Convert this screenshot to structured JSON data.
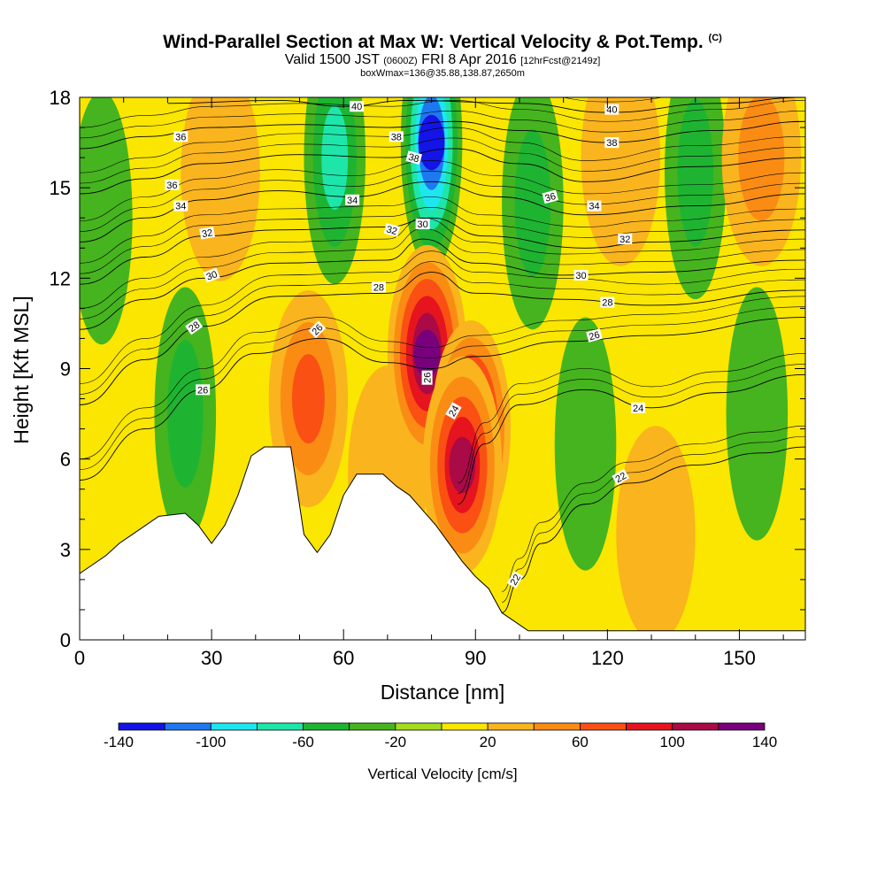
{
  "header": {
    "title_main": "Wind-Parallel Section at Max W: Vertical Velocity & Pot.Temp.",
    "title_mark": "(C)",
    "subtitle_a": "Valid 1500 JST",
    "subtitle_b": "(0600Z)",
    "subtitle_c": "FRI 8 Apr 2016",
    "subtitle_d": "[12hrFcst@2149z]",
    "subtitle2": "boxWmax=136@35.88,138.87,2650m"
  },
  "chart_data": {
    "type": "heatmap",
    "xlabel": "Distance [nm]",
    "ylabel": "Height [Kft MSL]",
    "xlim": [
      0,
      165
    ],
    "ylim": [
      0,
      18
    ],
    "x_ticks": [
      "0",
      "30",
      "60",
      "90",
      "120",
      "150"
    ],
    "x_tick_values": [
      0,
      30,
      60,
      90,
      120,
      150
    ],
    "y_ticks": [
      "0",
      "3",
      "6",
      "9",
      "12",
      "15",
      "18"
    ],
    "y_tick_values": [
      0,
      3,
      6,
      9,
      12,
      15,
      18
    ],
    "colorbar": {
      "title": "Vertical Velocity [cm/s]",
      "labels": [
        "-140",
        "-100",
        "-60",
        "-20",
        "20",
        "60",
        "100",
        "140"
      ],
      "label_values": [
        -140,
        -100,
        -60,
        -20,
        20,
        60,
        100,
        140
      ],
      "bounds": [
        -140,
        -120,
        -100,
        -80,
        -60,
        -40,
        -20,
        0,
        20,
        40,
        60,
        80,
        100,
        120,
        140
      ],
      "colors": [
        "#1414e6",
        "#1e78f0",
        "#1ee6f0",
        "#1ee6aa",
        "#1eb432",
        "#46b41e",
        "#a5dc1e",
        "#fae600",
        "#fab41e",
        "#fa8c14",
        "#fa5014",
        "#e6141e",
        "#aa0a46",
        "#78007d"
      ]
    },
    "w_features": [
      {
        "x": 80,
        "y": 16.5,
        "w": -120
      },
      {
        "x": 58,
        "y": 16.0,
        "w": -60
      },
      {
        "x": 103,
        "y": 14.5,
        "w": -50
      },
      {
        "x": 140,
        "y": 15.5,
        "w": -50
      },
      {
        "x": 5,
        "y": 14.0,
        "w": -35
      },
      {
        "x": 24,
        "y": 7.5,
        "w": -45
      },
      {
        "x": 115,
        "y": 6.5,
        "w": -35
      },
      {
        "x": 154,
        "y": 7.5,
        "w": -30
      },
      {
        "x": 70,
        "y": 5.5,
        "w": 30
      },
      {
        "x": 38,
        "y": 9.5,
        "w": 15
      },
      {
        "x": 131,
        "y": 3.5,
        "w": 35
      },
      {
        "x": 155,
        "y": 16.0,
        "w": 40
      },
      {
        "x": 123,
        "y": 16.0,
        "w": 35
      },
      {
        "x": 32,
        "y": 15.5,
        "w": 30
      },
      {
        "x": 52,
        "y": 8.0,
        "w": 70
      },
      {
        "x": 79,
        "y": 9.5,
        "w": 135
      },
      {
        "x": 89,
        "y": 7.0,
        "w": 125
      },
      {
        "x": 87,
        "y": 5.8,
        "w": 100
      }
    ],
    "terrain": [
      [
        0,
        2.2
      ],
      [
        3,
        2.5
      ],
      [
        6,
        2.8
      ],
      [
        9,
        3.2
      ],
      [
        12,
        3.5
      ],
      [
        15,
        3.8
      ],
      [
        18,
        4.1
      ],
      [
        24,
        4.2
      ],
      [
        27,
        3.8
      ],
      [
        30,
        3.2
      ],
      [
        33,
        3.8
      ],
      [
        36,
        4.8
      ],
      [
        39,
        6.1
      ],
      [
        42,
        6.4
      ],
      [
        48,
        6.4
      ],
      [
        51,
        3.5
      ],
      [
        54,
        2.9
      ],
      [
        57,
        3.5
      ],
      [
        60,
        4.8
      ],
      [
        63,
        5.5
      ],
      [
        69,
        5.5
      ],
      [
        72,
        5.1
      ],
      [
        75,
        4.8
      ],
      [
        78,
        4.3
      ],
      [
        81,
        3.8
      ],
      [
        84,
        3.2
      ],
      [
        87,
        2.6
      ],
      [
        90,
        2.1
      ],
      [
        93,
        1.7
      ],
      [
        96,
        0.9
      ],
      [
        99,
        0.6
      ],
      [
        102,
        0.3
      ],
      [
        165,
        0.3
      ]
    ],
    "theta_contours": [
      {
        "label": "22",
        "points": [
          [
            96,
            0.9
          ],
          [
            100,
            2.0
          ],
          [
            105,
            3.2
          ],
          [
            115,
            4.5
          ],
          [
            125,
            5.2
          ],
          [
            140,
            5.8
          ],
          [
            155,
            6.2
          ],
          [
            165,
            6.4
          ]
        ]
      },
      {
        "label": "24",
        "points": [
          [
            86,
            4.5
          ],
          [
            92,
            6.5
          ],
          [
            100,
            7.8
          ],
          [
            115,
            8.3
          ],
          [
            130,
            7.7
          ],
          [
            145,
            8.2
          ],
          [
            165,
            8.8
          ]
        ]
      },
      {
        "label": "26",
        "points": [
          [
            0,
            5.3
          ],
          [
            15,
            7.0
          ],
          [
            28,
            8.3
          ],
          [
            40,
            9.5
          ],
          [
            55,
            10.0
          ],
          [
            70,
            9.2
          ],
          [
            80,
            9.0
          ],
          [
            90,
            9.4
          ],
          [
            110,
            9.9
          ],
          [
            130,
            10.1
          ],
          [
            165,
            10.7
          ]
        ]
      },
      {
        "label": "28",
        "points": [
          [
            0,
            7.8
          ],
          [
            15,
            9.3
          ],
          [
            28,
            10.4
          ],
          [
            45,
            11.4
          ],
          [
            70,
            11.5
          ],
          [
            80,
            12.2
          ],
          [
            90,
            11.5
          ],
          [
            110,
            11.3
          ],
          [
            130,
            11.1
          ],
          [
            165,
            11.6
          ]
        ]
      },
      {
        "label": "30",
        "points": [
          [
            0,
            10.3
          ],
          [
            15,
            11.3
          ],
          [
            28,
            12.0
          ],
          [
            45,
            12.5
          ],
          [
            70,
            12.6
          ],
          [
            78,
            13.3
          ],
          [
            90,
            12.5
          ],
          [
            110,
            12.1
          ],
          [
            130,
            12.2
          ],
          [
            165,
            12.6
          ]
        ]
      },
      {
        "label": "32",
        "points": [
          [
            0,
            11.8
          ],
          [
            15,
            12.7
          ],
          [
            28,
            13.4
          ],
          [
            45,
            13.6
          ],
          [
            70,
            13.7
          ],
          [
            80,
            14.0
          ],
          [
            92,
            13.4
          ],
          [
            115,
            13.0
          ],
          [
            130,
            13.2
          ],
          [
            165,
            13.6
          ]
        ]
      },
      {
        "label": "34",
        "points": [
          [
            0,
            13.2
          ],
          [
            15,
            14.0
          ],
          [
            28,
            14.6
          ],
          [
            45,
            14.9
          ],
          [
            62,
            14.7
          ],
          [
            80,
            15.2
          ],
          [
            95,
            14.7
          ],
          [
            115,
            14.1
          ],
          [
            140,
            14.4
          ],
          [
            165,
            14.8
          ]
        ]
      },
      {
        "label": "36",
        "points": [
          [
            0,
            14.8
          ],
          [
            15,
            15.3
          ],
          [
            28,
            15.8
          ],
          [
            50,
            16.1
          ],
          [
            70,
            16.0
          ],
          [
            85,
            16.3
          ],
          [
            100,
            15.8
          ],
          [
            115,
            15.2
          ],
          [
            140,
            15.7
          ],
          [
            165,
            16.0
          ]
        ]
      },
      {
        "label": "38",
        "points": [
          [
            0,
            16.3
          ],
          [
            15,
            16.7
          ],
          [
            30,
            17.0
          ],
          [
            50,
            17.1
          ],
          [
            70,
            17.0
          ],
          [
            85,
            17.2
          ],
          [
            100,
            16.9
          ],
          [
            120,
            16.5
          ],
          [
            145,
            16.9
          ],
          [
            165,
            17.2
          ]
        ]
      },
      {
        "label": "40",
        "points": [
          [
            20,
            17.8
          ],
          [
            45,
            17.9
          ],
          [
            60,
            17.7
          ],
          [
            75,
            17.9
          ],
          [
            100,
            17.8
          ],
          [
            120,
            17.5
          ],
          [
            145,
            17.8
          ],
          [
            165,
            18.0
          ]
        ]
      }
    ],
    "contour_labels": [
      {
        "text": "22",
        "x": 99,
        "y": 2.0,
        "angle": -60
      },
      {
        "text": "22",
        "x": 123,
        "y": 5.4,
        "angle": -30
      },
      {
        "text": "24",
        "x": 85,
        "y": 7.6,
        "angle": -60
      },
      {
        "text": "24",
        "x": 127,
        "y": 7.7,
        "angle": 0
      },
      {
        "text": "26",
        "x": 28,
        "y": 8.3,
        "angle": 0
      },
      {
        "text": "26",
        "x": 79,
        "y": 8.7,
        "angle": -90
      },
      {
        "text": "26",
        "x": 54,
        "y": 10.3,
        "angle": -45
      },
      {
        "text": "26",
        "x": 117,
        "y": 10.1,
        "angle": -15
      },
      {
        "text": "28",
        "x": 26,
        "y": 10.4,
        "angle": -35
      },
      {
        "text": "28",
        "x": 68,
        "y": 11.7,
        "angle": 0
      },
      {
        "text": "28",
        "x": 120,
        "y": 11.2,
        "angle": 0
      },
      {
        "text": "30",
        "x": 30,
        "y": 12.1,
        "angle": -20
      },
      {
        "text": "30",
        "x": 78,
        "y": 13.8,
        "angle": 0
      },
      {
        "text": "30",
        "x": 114,
        "y": 12.1,
        "angle": 0
      },
      {
        "text": "32",
        "x": 29,
        "y": 13.5,
        "angle": -10
      },
      {
        "text": "32",
        "x": 71,
        "y": 13.6,
        "angle": 15
      },
      {
        "text": "32",
        "x": 124,
        "y": 13.3,
        "angle": 0
      },
      {
        "text": "34",
        "x": 23,
        "y": 14.4,
        "angle": 0
      },
      {
        "text": "34",
        "x": 62,
        "y": 14.6,
        "angle": 0
      },
      {
        "text": "34",
        "x": 117,
        "y": 14.4,
        "angle": 0
      },
      {
        "text": "36",
        "x": 21,
        "y": 15.1,
        "angle": 0
      },
      {
        "text": "36",
        "x": 23,
        "y": 16.7,
        "angle": 0
      },
      {
        "text": "36",
        "x": 107,
        "y": 14.7,
        "angle": -15
      },
      {
        "text": "38",
        "x": 72,
        "y": 16.7,
        "angle": 0
      },
      {
        "text": "38",
        "x": 76,
        "y": 16.0,
        "angle": 15
      },
      {
        "text": "38",
        "x": 121,
        "y": 16.5,
        "angle": 0
      },
      {
        "text": "40",
        "x": 63,
        "y": 17.7,
        "angle": 0
      },
      {
        "text": "40",
        "x": 121,
        "y": 17.6,
        "angle": 0
      }
    ]
  }
}
